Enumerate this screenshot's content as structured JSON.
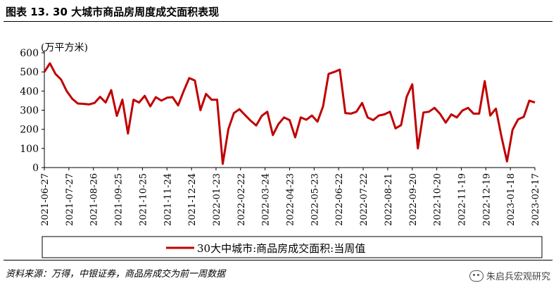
{
  "header": {
    "title": "图表 13. 30 大城市商品房周度成交面积表现"
  },
  "footer": {
    "source": "资料来源：万得，中银证券，商品房成交为前一周数据",
    "watermark": "朱启兵宏观研究"
  },
  "chart_data": {
    "type": "line",
    "unit_label": "(万平方米)",
    "ylim": [
      0,
      600
    ],
    "yticks": [
      0,
      100,
      200,
      300,
      400,
      500,
      600
    ],
    "grid": false,
    "legend_position": "bottom",
    "xtick_labels": [
      "2021-06-27",
      "2021-07-27",
      "2021-08-26",
      "2021-09-25",
      "2021-10-25",
      "2021-11-24",
      "2021-12-24",
      "2022-01-23",
      "2022-02-22",
      "2022-03-24",
      "2022-04-23",
      "2022-05-23",
      "2022-06-22",
      "2022-07-22",
      "2022-08-21",
      "2022-09-20",
      "2022-10-20",
      "2022-11-19",
      "2022-12-19",
      "2023-01-18",
      "2023-02-17"
    ],
    "series": [
      {
        "name": "30大中城市:商品房成交面积:当周值",
        "color": "#C00000",
        "values": [
          500,
          545,
          490,
          460,
          400,
          360,
          335,
          333,
          330,
          338,
          370,
          340,
          405,
          270,
          355,
          178,
          355,
          340,
          375,
          320,
          368,
          350,
          365,
          368,
          325,
          400,
          468,
          455,
          300,
          385,
          355,
          355,
          20,
          200,
          285,
          305,
          275,
          245,
          220,
          270,
          292,
          170,
          228,
          262,
          248,
          158,
          262,
          250,
          272,
          240,
          320,
          490,
          500,
          512,
          285,
          282,
          292,
          338,
          262,
          248,
          272,
          278,
          292,
          205,
          222,
          370,
          435,
          100,
          288,
          292,
          312,
          280,
          235,
          278,
          262,
          298,
          312,
          282,
          282,
          452,
          272,
          308,
          162,
          32,
          198,
          252,
          265,
          350,
          340
        ]
      }
    ]
  }
}
